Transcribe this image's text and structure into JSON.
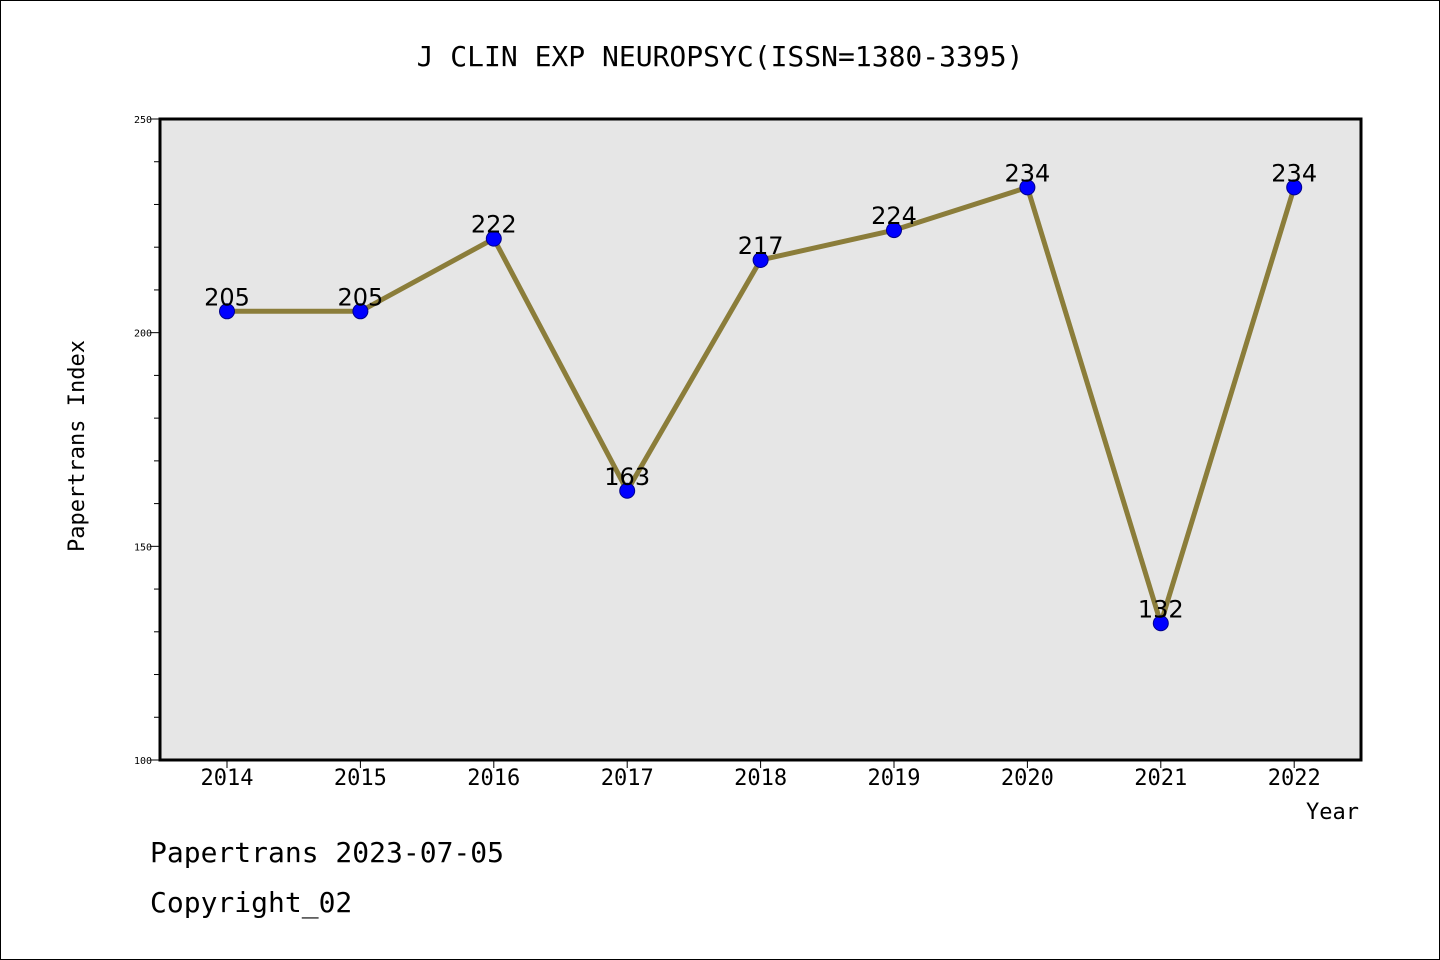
{
  "chart_data": {
    "type": "line",
    "title": "J CLIN EXP NEUROPSYC(ISSN=1380-3395)",
    "xlabel": "Year",
    "ylabel": "Papertrans Index",
    "categories": [
      "2014",
      "2015",
      "2016",
      "2017",
      "2018",
      "2019",
      "2020",
      "2021",
      "2022"
    ],
    "values": [
      205,
      205,
      222,
      163,
      217,
      224,
      234,
      132,
      234
    ],
    "data_labels": [
      "205",
      "205",
      "222",
      "163",
      "217",
      "224",
      "234",
      "132",
      "234"
    ],
    "ylim": [
      100,
      250
    ],
    "yticks": [
      "100",
      "150",
      "200",
      "250"
    ],
    "grid": false,
    "line_color": "#8b7d3a",
    "marker_color": "#0000ff",
    "plot_background": "#e6e6e6"
  },
  "footer": {
    "line1": "Papertrans 2023-07-05",
    "line2": "Copyright_02"
  }
}
